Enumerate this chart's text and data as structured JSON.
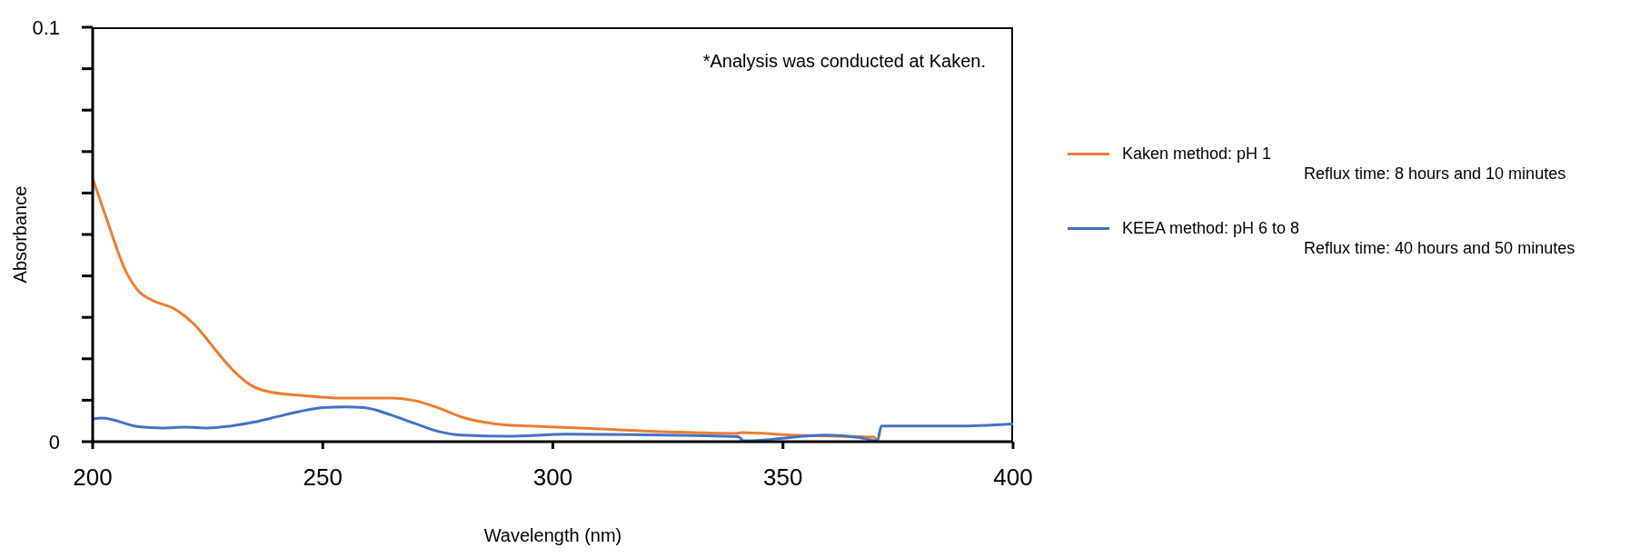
{
  "chart_data": {
    "type": "line",
    "xlabel": "Wavelength (nm)",
    "ylabel": "Absorbance",
    "annotations": [
      "*Analysis was conducted at Kaken."
    ],
    "xlim": [
      200,
      400
    ],
    "xticks": [
      200,
      250,
      300,
      350,
      400
    ],
    "ylim": [
      0,
      0.1
    ],
    "yticks": [
      0,
      {
        "value": 0.01,
        "label": null
      },
      {
        "value": 0.02,
        "label": null
      },
      {
        "value": 0.03,
        "label": null
      },
      {
        "value": 0.04,
        "label": null
      },
      {
        "value": 0.05,
        "label": null
      },
      {
        "value": 0.06,
        "label": null
      },
      {
        "value": 0.07,
        "label": null
      },
      {
        "value": 0.08,
        "label": null
      },
      {
        "value": 0.09,
        "label": null
      },
      0.1
    ],
    "grid": false,
    "legend": "right",
    "marker": "none",
    "line_style": "solid",
    "series": [
      {
        "name": "Kaken method: pH 1\nReflux time: 8 hours and 10 minutes",
        "color": "#ed7d31",
        "x": [
          200,
          203,
          207,
          210,
          213,
          218,
          222,
          226,
          230,
          234,
          238,
          245,
          255,
          265,
          270,
          275,
          280,
          285,
          290,
          295,
          305.6,
          340,
          341,
          352,
          369.8,
          370.5
        ],
        "values": [
          0.0635,
          0.0539,
          0.0416,
          0.0363,
          0.0341,
          0.0319,
          0.0284,
          0.0231,
          0.0178,
          0.0139,
          0.0121,
          0.0112,
          0.0105,
          0.0105,
          0.0099,
          0.0082,
          0.006,
          0.0047,
          0.004,
          0.0038,
          0.0033,
          0.002,
          0.0022,
          0.0016,
          0.0011,
          0
        ]
      },
      {
        "name": "KEEA method: pH 6 to 8\nReflux time: 40 hours and 50 minutes",
        "color": "#4472c4",
        "x": [
          200,
          202,
          210,
          215,
          220,
          225,
          230,
          235,
          240,
          245,
          250,
          255,
          259,
          265,
          270,
          275,
          280,
          290,
          303,
          340.3,
          341.4,
          359.5,
          366.6,
          370.5,
          371.4,
          388,
          400
        ],
        "values": [
          0.0055,
          0.0057,
          0.0036,
          0.0033,
          0.0035,
          0.0033,
          0.0038,
          0.0047,
          0.006,
          0.0073,
          0.0082,
          0.0084,
          0.0082,
          0.0064,
          0.0044,
          0.0025,
          0.0016,
          0.0013,
          0.0018,
          0.0012,
          0.0002,
          0.0016,
          0.001,
          0.0002,
          0.0038,
          0.0038,
          0.0043
        ]
      }
    ]
  }
}
